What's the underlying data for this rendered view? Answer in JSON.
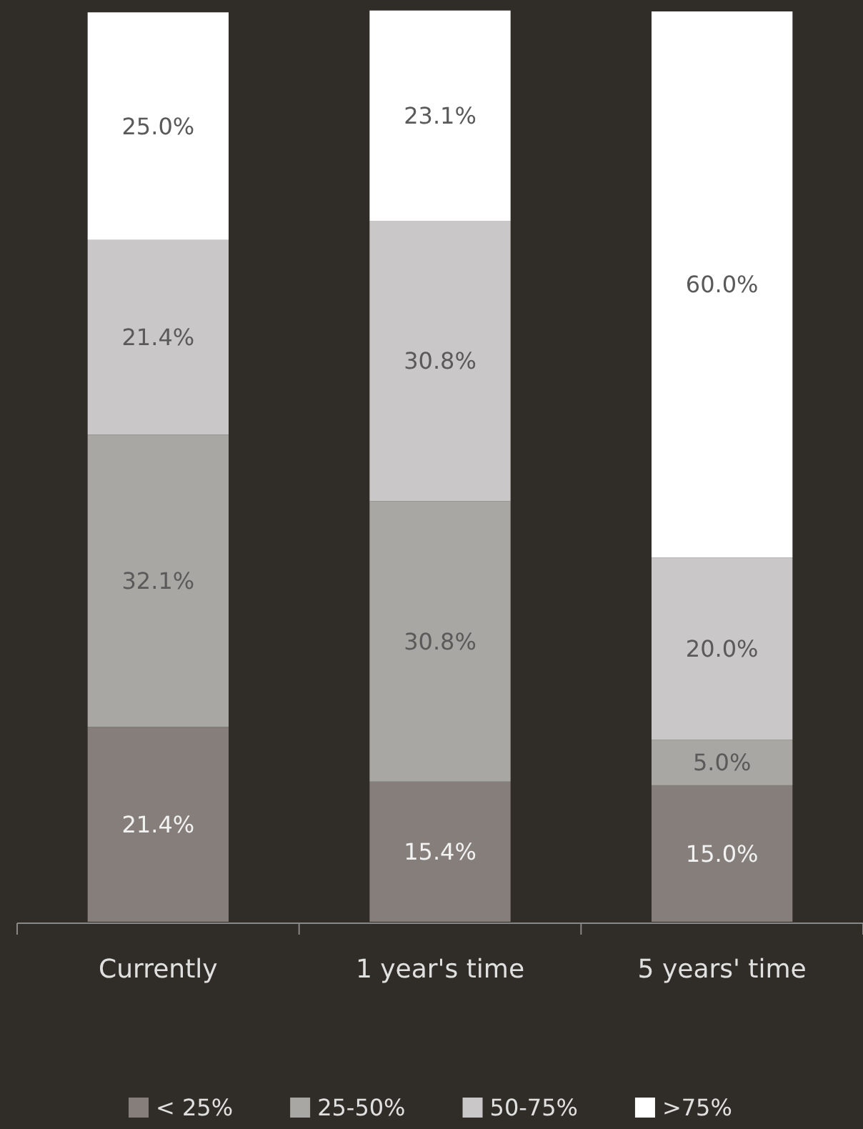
{
  "chart_data": {
    "type": "bar",
    "stacked": true,
    "categories": [
      "Currently",
      "1 year's time",
      "5 years' time"
    ],
    "ylim": [
      0,
      100
    ],
    "tick_labels": "x",
    "legend": "bottom",
    "series": [
      {
        "name": "< 25%",
        "color": "#857e7b",
        "values": [
          21.4,
          15.4,
          15.0
        ],
        "value_labels": [
          "21.4%",
          "15.4%",
          "15.0%"
        ]
      },
      {
        "name": "25-50%",
        "color": "#a9a7a3",
        "values": [
          32.1,
          30.8,
          5.0
        ],
        "value_labels": [
          "32.1%",
          "30.8%",
          "5.0%"
        ]
      },
      {
        "name": "50-75%",
        "color": "#c9c7c8",
        "values": [
          21.4,
          30.8,
          20.0
        ],
        "value_labels": [
          "21.4%",
          "30.8%",
          "20.0%"
        ]
      },
      {
        "name": ">75%",
        "color": "#ffffff",
        "values": [
          25.0,
          23.1,
          60.0
        ],
        "value_labels": [
          "25.0%",
          "23.1%",
          "60.0%"
        ]
      }
    ]
  }
}
